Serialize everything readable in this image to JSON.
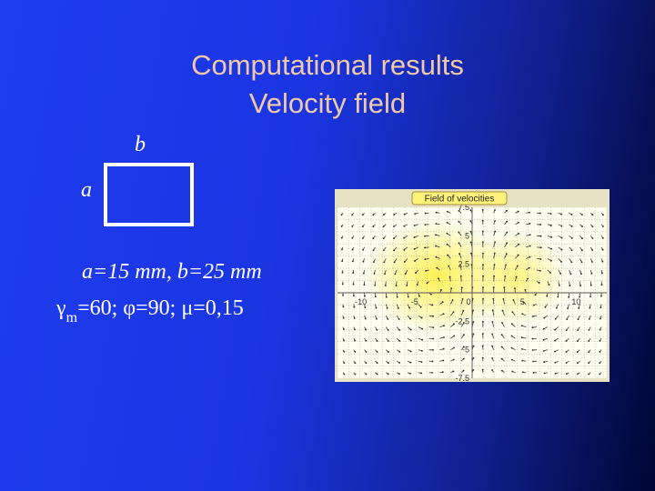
{
  "title": {
    "line1": "Computational results",
    "line2": "Velocity field"
  },
  "diagram": {
    "label_b": "b",
    "label_a": "a"
  },
  "parameters": {
    "dims": "a=15 mm, b=25 mm",
    "gamma_sym": "γ",
    "gamma_sub": "m",
    "rest": "=60; φ=90; μ=0,15"
  },
  "chart_data": {
    "type": "vector-field",
    "title": "Field of velocities",
    "xlabel": "",
    "ylabel": "",
    "x_ticks": [
      "-10",
      "-5",
      "0",
      "5",
      "10"
    ],
    "y_ticks": [
      "7.5",
      "5",
      "2.5",
      "0",
      "-2.5",
      "-5",
      "-7.5"
    ],
    "xlim": [
      -12.5,
      12.5
    ],
    "ylim": [
      -7.5,
      7.5
    ],
    "grid": true,
    "colors": {
      "panel": "#fdfdf0",
      "frame": "#e7e2c4",
      "field_highlight": "#fff04a",
      "title_bg": "#fff27a"
    }
  }
}
